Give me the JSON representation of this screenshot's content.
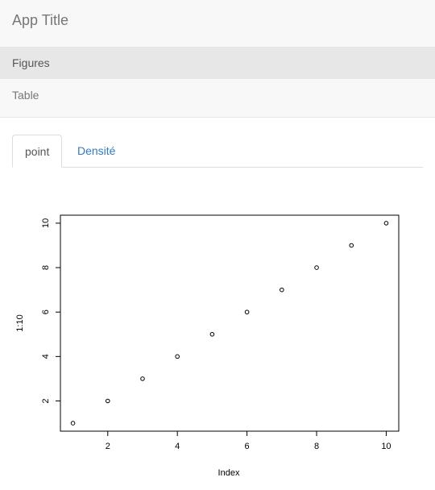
{
  "navbar": {
    "title": "App Title",
    "items": [
      {
        "label": "Figures",
        "active": true
      },
      {
        "label": "Table",
        "active": false
      }
    ]
  },
  "tabs": [
    {
      "label": "point",
      "active": true
    },
    {
      "label": "Densité",
      "active": false
    }
  ],
  "chart_data": {
    "type": "scatter",
    "x": [
      1,
      2,
      3,
      4,
      5,
      6,
      7,
      8,
      9,
      10
    ],
    "y": [
      1,
      2,
      3,
      4,
      5,
      6,
      7,
      8,
      9,
      10
    ],
    "xlabel": "Index",
    "ylabel": "1:10",
    "xticks": [
      2,
      4,
      6,
      8,
      10
    ],
    "yticks": [
      2,
      4,
      6,
      8,
      10
    ],
    "xlim": [
      0.64,
      10.36
    ],
    "ylim": [
      0.64,
      10.36
    ],
    "marker": "open-circle",
    "grid": false
  }
}
